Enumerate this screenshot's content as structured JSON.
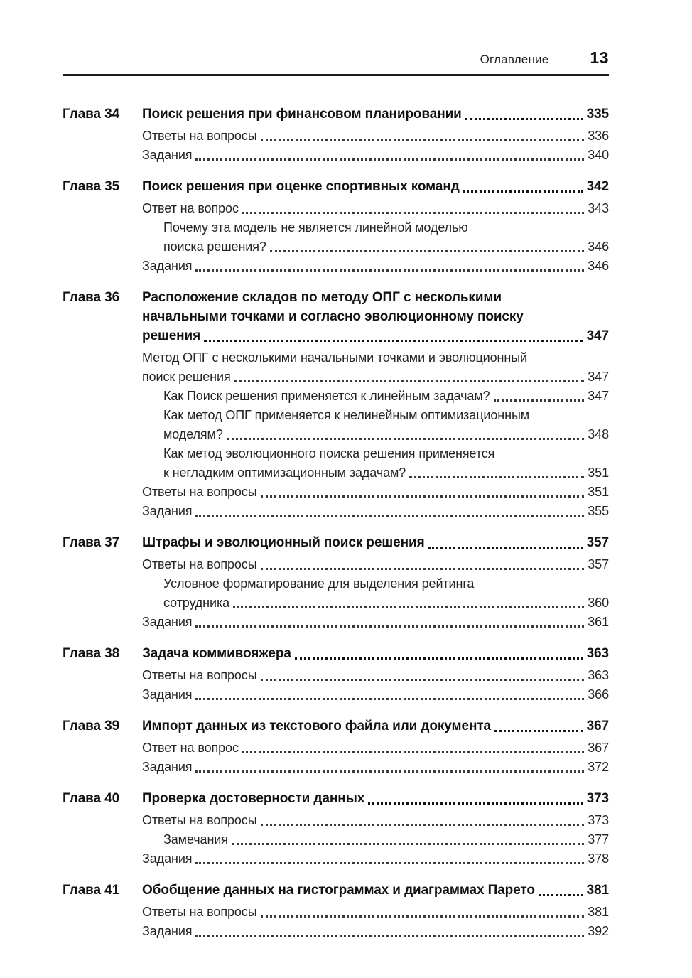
{
  "header": {
    "running_title": "Оглавление",
    "page_number": "13"
  },
  "colors": {
    "text": "#1b1b1b",
    "rule": "#1d1d1d"
  },
  "toc": {
    "entries": [
      {
        "kind": "chapter",
        "label": "Глава 34",
        "lines": [
          "Поиск решения при финансовом планировании"
        ],
        "page": "335"
      },
      {
        "kind": "sub",
        "level": 1,
        "lines": [
          "Ответы на вопросы"
        ],
        "page": "336"
      },
      {
        "kind": "sub",
        "level": 1,
        "lines": [
          "Задания"
        ],
        "page": "340"
      },
      {
        "kind": "chapter",
        "label": "Глава 35",
        "lines": [
          "Поиск решения при оценке спортивных команд"
        ],
        "page": "342"
      },
      {
        "kind": "sub",
        "level": 1,
        "lines": [
          "Ответ на вопрос"
        ],
        "page": "343"
      },
      {
        "kind": "sub",
        "level": 2,
        "lines": [
          "Почему эта модель не является линейной моделью",
          "поиска решения?"
        ],
        "page": "346"
      },
      {
        "kind": "sub",
        "level": 1,
        "lines": [
          "Задания"
        ],
        "page": "346"
      },
      {
        "kind": "chapter",
        "label": "Глава 36",
        "lines": [
          "Расположение складов по методу ОПГ с несколькими",
          "начальными точками и согласно эволюционному поиску",
          "решения"
        ],
        "page": "347"
      },
      {
        "kind": "sub",
        "level": 1,
        "lines": [
          "Метод ОПГ с несколькими начальными точками и эволюционный",
          "поиск решения"
        ],
        "page": "347"
      },
      {
        "kind": "sub",
        "level": 2,
        "lines": [
          "Как Поиск решения применяется к линейным задачам?"
        ],
        "page": "347"
      },
      {
        "kind": "sub",
        "level": 2,
        "lines": [
          "Как метод ОПГ применяется к нелинейным оптимизационным",
          "моделям?"
        ],
        "page": "348"
      },
      {
        "kind": "sub",
        "level": 2,
        "lines": [
          "Как метод эволюционного поиска решения применяется",
          "к негладким оптимизационным задачам?"
        ],
        "page": "351"
      },
      {
        "kind": "sub",
        "level": 1,
        "lines": [
          "Ответы на вопросы"
        ],
        "page": "351"
      },
      {
        "kind": "sub",
        "level": 1,
        "lines": [
          "Задания"
        ],
        "page": "355"
      },
      {
        "kind": "chapter",
        "label": "Глава 37",
        "lines": [
          "Штрафы и эволюционный поиск решения"
        ],
        "page": "357"
      },
      {
        "kind": "sub",
        "level": 1,
        "lines": [
          "Ответы на вопросы"
        ],
        "page": "357"
      },
      {
        "kind": "sub",
        "level": 2,
        "lines": [
          "Условное форматирование для выделения рейтинга",
          "сотрудника"
        ],
        "page": "360"
      },
      {
        "kind": "sub",
        "level": 1,
        "lines": [
          "Задания"
        ],
        "page": "361"
      },
      {
        "kind": "chapter",
        "label": "Глава 38",
        "lines": [
          "Задача коммивояжера"
        ],
        "page": "363"
      },
      {
        "kind": "sub",
        "level": 1,
        "lines": [
          "Ответы на вопросы"
        ],
        "page": "363"
      },
      {
        "kind": "sub",
        "level": 1,
        "lines": [
          "Задания"
        ],
        "page": "366"
      },
      {
        "kind": "chapter",
        "label": "Глава 39",
        "lines": [
          "Импорт данных из текстового файла или документа"
        ],
        "page": "367"
      },
      {
        "kind": "sub",
        "level": 1,
        "lines": [
          "Ответ на вопрос"
        ],
        "page": "367"
      },
      {
        "kind": "sub",
        "level": 1,
        "lines": [
          "Задания"
        ],
        "page": "372"
      },
      {
        "kind": "chapter",
        "label": "Глава 40",
        "lines": [
          "Проверка достоверности данных"
        ],
        "page": "373"
      },
      {
        "kind": "sub",
        "level": 1,
        "lines": [
          "Ответы на вопросы"
        ],
        "page": "373"
      },
      {
        "kind": "sub",
        "level": 2,
        "lines": [
          "Замечания"
        ],
        "page": "377"
      },
      {
        "kind": "sub",
        "level": 1,
        "lines": [
          "Задания"
        ],
        "page": "378"
      },
      {
        "kind": "chapter",
        "label": "Глава 41",
        "lines": [
          "Обобщение данных на гистограммах и диаграммах Парето"
        ],
        "page": "381"
      },
      {
        "kind": "sub",
        "level": 1,
        "lines": [
          "Ответы на вопросы"
        ],
        "page": "381"
      },
      {
        "kind": "sub",
        "level": 1,
        "lines": [
          "Задания"
        ],
        "page": "392"
      }
    ]
  }
}
